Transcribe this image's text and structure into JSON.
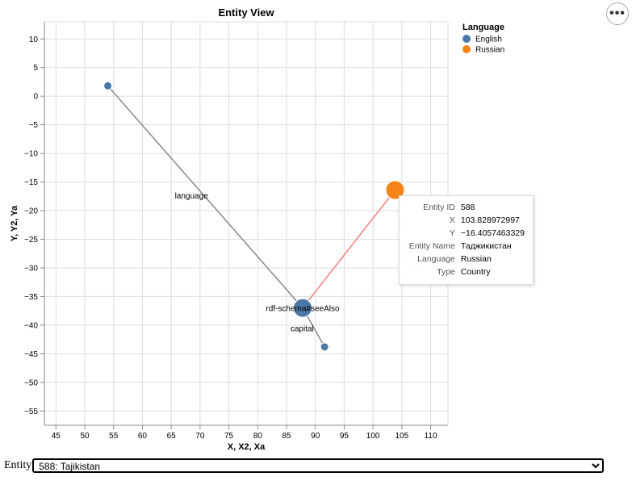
{
  "chart_data": {
    "type": "scatter",
    "title": "Entity View",
    "xlabel": "X, X2, Xa",
    "ylabel": "Y, Y2, Ya",
    "xlim": [
      43,
      113
    ],
    "ylim": [
      -57.5,
      13
    ],
    "xticks": [
      45,
      50,
      55,
      60,
      65,
      70,
      75,
      80,
      85,
      90,
      95,
      100,
      105,
      110
    ],
    "yticks": [
      10,
      5,
      0,
      -5,
      -10,
      -15,
      -20,
      -25,
      -30,
      -35,
      -40,
      -45,
      -50,
      -55
    ],
    "grid": true,
    "legend": {
      "title": "Language",
      "placement": "top-right",
      "items": [
        {
          "label": "English",
          "color": "#4c78a8"
        },
        {
          "label": "Russian",
          "color": "#f58518"
        }
      ]
    },
    "points": [
      {
        "x": 54.0,
        "y": 1.8,
        "language": "English",
        "size": "small"
      },
      {
        "x": 87.8,
        "y": -37.0,
        "language": "English",
        "size": "large"
      },
      {
        "x": 91.6,
        "y": -43.8,
        "language": "English",
        "size": "small"
      },
      {
        "x": 103.828972997,
        "y": -16.4057463329,
        "language": "Russian",
        "size": "large"
      }
    ],
    "edges": [
      {
        "from": [
          54.0,
          1.8
        ],
        "to": [
          87.8,
          -37.0
        ],
        "label": "language",
        "label_at": [
          68.5,
          -17.3
        ],
        "color": "#888888"
      },
      {
        "from": [
          87.8,
          -37.0
        ],
        "to": [
          91.6,
          -43.8
        ],
        "label": "capital",
        "label_at": [
          87.7,
          -40.5
        ],
        "color": "#888888"
      },
      {
        "from": [
          87.8,
          -37.0
        ],
        "to": [
          103.828972997,
          -16.4057463329
        ],
        "label": "rdf-schema#seeAlso",
        "label_at": [
          87.8,
          -37.0
        ],
        "color": "#f47c7c"
      }
    ]
  },
  "tooltip": {
    "rows": [
      {
        "key": "Entity ID",
        "value": "588"
      },
      {
        "key": "X",
        "value": "103.828972997"
      },
      {
        "key": "Y",
        "value": "−16.4057463329"
      },
      {
        "key": "Entity Name",
        "value": "Таджикистан"
      },
      {
        "key": "Language",
        "value": "Russian"
      },
      {
        "key": "Type",
        "value": "Country"
      }
    ]
  },
  "menu": {
    "more_label": "•••"
  },
  "entity_select": {
    "label": "Entity",
    "selected": "588: Tajikistan"
  }
}
